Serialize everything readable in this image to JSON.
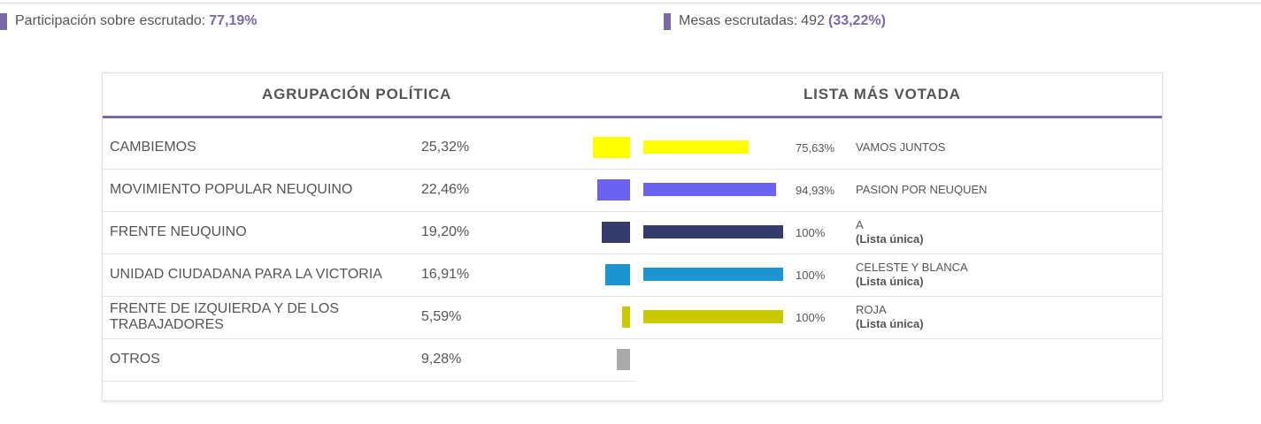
{
  "stats": {
    "participation_label": "Participación sobre escrutado:",
    "participation_value": "77,19%",
    "tables_label": "Mesas escrutadas:",
    "tables_count": "492",
    "tables_value": "(33,22%)"
  },
  "table": {
    "header_left": "AGRUPACIÓN POLÍTICA",
    "header_right": "LISTA MÁS VOTADA",
    "parties": [
      {
        "name": "CAMBIEMOS",
        "pct": "25,32%",
        "value": 25.32,
        "color": "#ffff00"
      },
      {
        "name": "MOVIMIENTO POPULAR NEUQUINO",
        "pct": "22,46%",
        "value": 22.46,
        "color": "#6a63f2"
      },
      {
        "name": "FRENTE NEUQUINO",
        "pct": "19,20%",
        "value": 19.2,
        "color": "#343c6c"
      },
      {
        "name": "UNIDAD CIUDADANA PARA LA VICTORIA",
        "pct": "16,91%",
        "value": 16.91,
        "color": "#1b95cf"
      },
      {
        "name": "FRENTE DE IZQUIERDA Y DE LOS TRABAJADORES",
        "pct": "5,59%",
        "value": 5.59,
        "color": "#c9c900"
      },
      {
        "name": "OTROS",
        "pct": "9,28%",
        "value": 9.28,
        "color": "#aaaaaa"
      }
    ],
    "lists": [
      {
        "pct": "75,63%",
        "value": 75.63,
        "name": "VAMOS JUNTOS",
        "sub": "",
        "color": "#ffff00"
      },
      {
        "pct": "94,93%",
        "value": 94.93,
        "name": "PASION POR NEUQUEN",
        "sub": "",
        "color": "#6a63f2"
      },
      {
        "pct": "100%",
        "value": 100,
        "name": "A",
        "sub": "(Lista única)",
        "color": "#343c6c"
      },
      {
        "pct": "100%",
        "value": 100,
        "name": "CELESTE Y BLANCA",
        "sub": "(Lista única)",
        "color": "#1b95cf"
      },
      {
        "pct": "100%",
        "value": 100,
        "name": "ROJA",
        "sub": "(Lista única)",
        "color": "#c9c900"
      }
    ]
  }
}
